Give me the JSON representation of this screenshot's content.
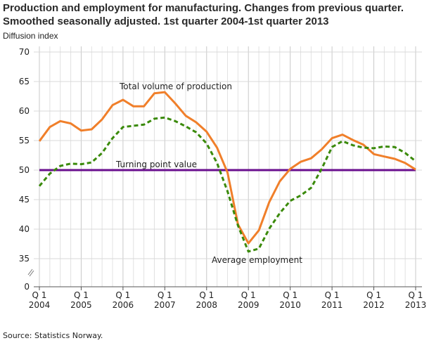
{
  "chart_data": {
    "type": "line",
    "title": "Production and employment for manufacturing. Changes from previous quarter. Smoothed seasonally adjusted. 1st quarter 2004-1st quarter 2013",
    "ylabel": "Diffusion index",
    "xlabel": "",
    "ylim": [
      0,
      70
    ],
    "y_axis_break": [
      0,
      35
    ],
    "yticks": [
      0,
      35,
      40,
      45,
      50,
      55,
      60,
      65,
      70
    ],
    "grid": true,
    "x_tick_labels": [
      {
        "q": "Q 1",
        "year": "2004"
      },
      {
        "q": "Q 1",
        "year": "2005"
      },
      {
        "q": "Q 1",
        "year": "2006"
      },
      {
        "q": "Q 1",
        "year": "2007"
      },
      {
        "q": "Q 1",
        "year": "2008"
      },
      {
        "q": "Q 1",
        "year": "2009"
      },
      {
        "q": "Q 1",
        "year": "2010"
      },
      {
        "q": "Q 1",
        "year": "2011"
      },
      {
        "q": "Q 1",
        "year": "2012"
      },
      {
        "q": "Q 1",
        "year": "2013"
      }
    ],
    "x_range": [
      "2004Q1",
      "2013Q1"
    ],
    "series": [
      {
        "name": "Total volume of production",
        "color": "#f07f2a",
        "style": "solid",
        "values": [
          54.9,
          57.3,
          58.3,
          57.9,
          56.7,
          56.9,
          58.6,
          61.0,
          61.9,
          60.8,
          60.8,
          63.0,
          63.2,
          61.3,
          59.2,
          58.1,
          56.5,
          53.8,
          49.6,
          40.8,
          37.6,
          39.8,
          44.6,
          48.1,
          50.2,
          51.4,
          52.0,
          53.5,
          55.4,
          56.0,
          55.1,
          54.3,
          52.7,
          52.3,
          51.9,
          51.2,
          50.1
        ]
      },
      {
        "name": "Average employment",
        "color": "#3a8a0a",
        "style": "dashed",
        "values": [
          47.3,
          49.4,
          50.7,
          51.1,
          51.0,
          51.3,
          52.9,
          55.4,
          57.3,
          57.5,
          57.7,
          58.7,
          58.9,
          58.3,
          57.4,
          56.4,
          54.5,
          51.2,
          46.4,
          40.6,
          36.2,
          36.7,
          40.1,
          42.7,
          44.8,
          45.7,
          47.0,
          50.2,
          53.9,
          54.9,
          54.2,
          53.8,
          53.7,
          54.0,
          53.9,
          52.9,
          51.5
        ]
      },
      {
        "name": "Turning point value",
        "color": "#6a0f8e",
        "style": "solid",
        "constant": 50
      }
    ]
  },
  "source": "Source: Statistics Norway."
}
